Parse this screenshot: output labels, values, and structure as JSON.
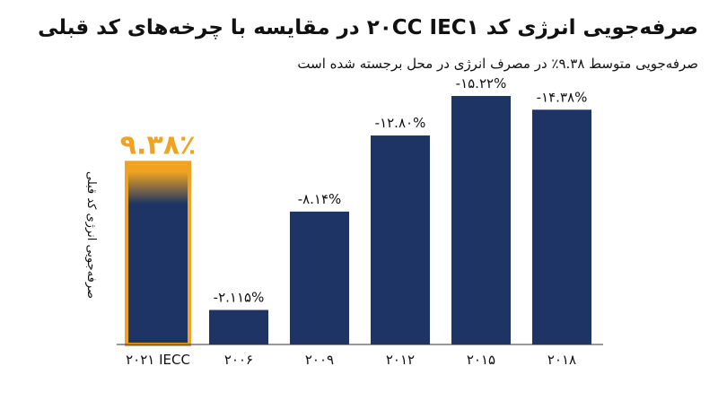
{
  "chart_data": {
    "type": "bar",
    "title": "صرفه‌جویی انرژی کد ۲۰CC IEC۱ در مقایسه با چرخه‌های کد قبلی",
    "subtitle": "صرفه‌جویی متوسط ۹.۳۸٪ در مصرف انرژی در محل برجسته شده است",
    "ylabel": "صرفه‌جویی انرژی کد قبلی",
    "xlabel": "",
    "categories": [
      "۲۰۲۱ IECC",
      "۲۰۰۶",
      "۲۰۰۹",
      "۲۰۱۲",
      "۲۰۱۵",
      "۲۰۱۸"
    ],
    "values": [
      9.38,
      -2.115,
      -8.14,
      -12.8,
      -15.22,
      -14.38
    ],
    "value_labels": [
      "۹.۳۸٪",
      "-۲.۱۱۵%",
      "-۸.۱۴%",
      "-۱۲.۸۰%",
      "-۱۵.۲۲%",
      "-۱۴.۳۸%"
    ],
    "highlight_index": 0,
    "colors": {
      "bar": "#1e3464",
      "highlight": "#f0a320",
      "highlight_label": "#f0a320",
      "axis": "#333333"
    },
    "grid": false,
    "legend": "none"
  }
}
